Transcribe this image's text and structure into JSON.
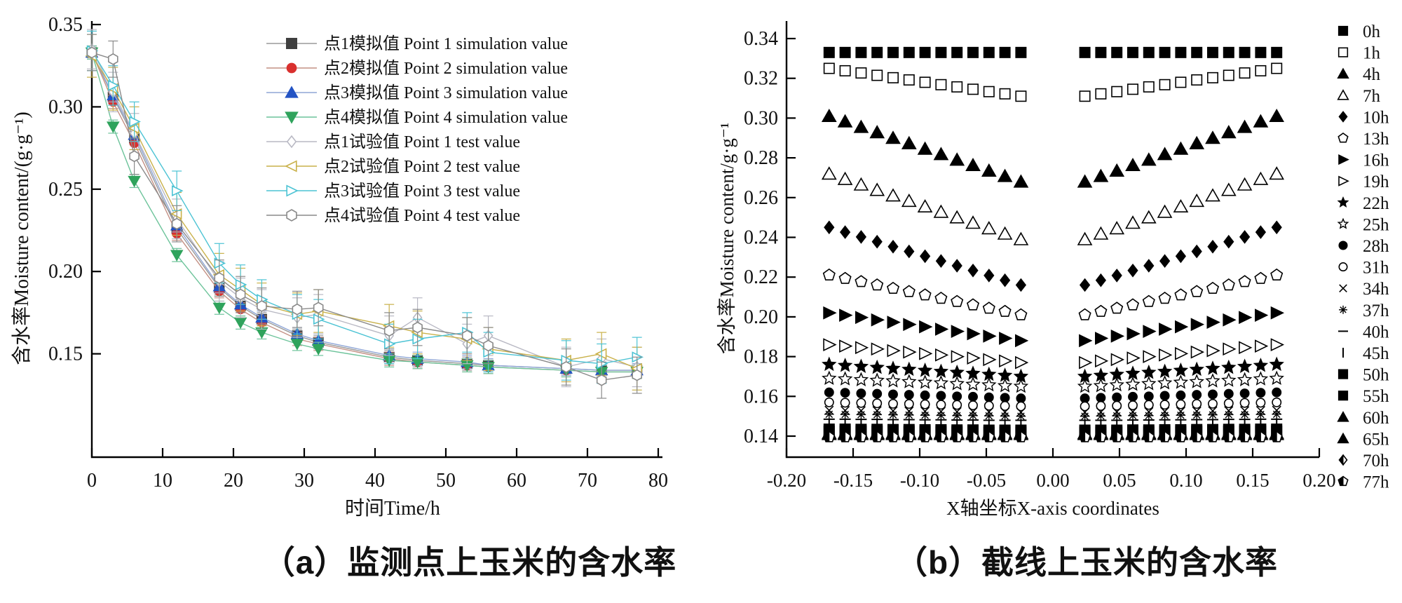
{
  "captions": {
    "a": "（a）监测点上玉米的含水率",
    "b": "（b）截线上玉米的含水率"
  },
  "chart_data": [
    {
      "id": "a",
      "type": "line",
      "xlabel": "时间Time/h",
      "ylabel": "含水率Moisture content/(g·g⁻¹)",
      "xlim": [
        0,
        80
      ],
      "ylim": [
        0.12,
        0.35
      ],
      "xticks": [
        0,
        10,
        20,
        30,
        40,
        50,
        60,
        70,
        80
      ],
      "yticks": [
        0.15,
        0.2,
        0.25,
        0.3,
        0.35
      ],
      "grid": false,
      "legend_position": "top-right-inside",
      "x": [
        0,
        3,
        6,
        12,
        18,
        21,
        24,
        29,
        32,
        42,
        46,
        53,
        56,
        67,
        72,
        77
      ],
      "series": [
        {
          "name": "点1模拟值 Point 1 simulation value",
          "marker": "square",
          "open": false,
          "color": "#3f3f3f",
          "line": "#9a9a9a",
          "err": 0.004,
          "values": [
            0.333,
            0.306,
            0.281,
            0.226,
            0.19,
            0.179,
            0.171,
            0.161,
            0.157,
            0.148,
            0.146,
            0.144,
            0.143,
            0.141,
            0.14,
            0.14
          ]
        },
        {
          "name": "点2模拟值 Point 2 simulation value",
          "marker": "circle",
          "open": false,
          "color": "#d9302e",
          "line": "#c49084",
          "err": 0.004,
          "values": [
            0.333,
            0.303,
            0.278,
            0.223,
            0.188,
            0.177,
            0.169,
            0.159,
            0.156,
            0.147,
            0.145,
            0.143,
            0.142,
            0.14,
            0.139,
            0.139
          ]
        },
        {
          "name": "点3模拟值 Point 3 simulation value",
          "marker": "triangle-up",
          "open": false,
          "color": "#2353c4",
          "line": "#8fa6d6",
          "err": 0.004,
          "values": [
            0.333,
            0.307,
            0.283,
            0.228,
            0.191,
            0.18,
            0.172,
            0.162,
            0.158,
            0.149,
            0.147,
            0.145,
            0.143,
            0.141,
            0.14,
            0.14
          ]
        },
        {
          "name": "点4模拟值 Point 4 simulation value",
          "marker": "triangle-down",
          "open": false,
          "color": "#2fa35c",
          "line": "#6cc39a",
          "err": 0.004,
          "values": [
            0.333,
            0.288,
            0.255,
            0.21,
            0.178,
            0.169,
            0.163,
            0.156,
            0.153,
            0.146,
            0.145,
            0.143,
            0.142,
            0.14,
            0.139,
            0.139
          ]
        },
        {
          "name": "点1试验值 Point 1 test value",
          "marker": "diamond",
          "open": true,
          "color": "#b9b9c4",
          "line": "#b9b9c4",
          "err": 0.012,
          "values": [
            0.335,
            0.309,
            0.284,
            0.232,
            0.194,
            0.184,
            0.177,
            0.172,
            0.174,
            0.161,
            0.172,
            0.156,
            0.161,
            0.142,
            0.147,
            0.142
          ]
        },
        {
          "name": "点2试验值 Point 2 test value",
          "marker": "triangle-left",
          "open": true,
          "color": "#c9b14a",
          "line": "#c9b14a",
          "err": 0.013,
          "values": [
            0.331,
            0.311,
            0.287,
            0.235,
            0.198,
            0.189,
            0.18,
            0.174,
            0.176,
            0.167,
            0.163,
            0.159,
            0.153,
            0.146,
            0.15,
            0.141
          ]
        },
        {
          "name": "点3试验值 Point 3 test value",
          "marker": "triangle-right",
          "open": true,
          "color": "#4cc3d4",
          "line": "#4cc3d4",
          "err": 0.012,
          "values": [
            0.334,
            0.313,
            0.291,
            0.249,
            0.205,
            0.192,
            0.183,
            0.174,
            0.171,
            0.156,
            0.159,
            0.163,
            0.151,
            0.146,
            0.144,
            0.148
          ]
        },
        {
          "name": "点4试验值 Point 4 test value",
          "marker": "hexagon",
          "open": true,
          "color": "#8a8a8a",
          "line": "#8a8a8a",
          "err": 0.011,
          "values": [
            0.333,
            0.329,
            0.27,
            0.229,
            0.196,
            0.186,
            0.179,
            0.177,
            0.178,
            0.164,
            0.166,
            0.161,
            0.155,
            0.142,
            0.134,
            0.137
          ]
        }
      ]
    },
    {
      "id": "b",
      "type": "scatter",
      "xlabel": "X轴坐标X-axis coordinates",
      "ylabel": "含水率Moisture content/g·g⁻¹",
      "xlim": [
        -0.2,
        0.2
      ],
      "ylim": [
        0.13,
        0.34
      ],
      "xtick_values": [
        -0.2,
        -0.15,
        -0.1,
        -0.05,
        0.0,
        0.05,
        0.1,
        0.15,
        0.2
      ],
      "xtick_labels": [
        "-0.20",
        "-0.15",
        "-0.10",
        "-0.05",
        "0.00",
        "0.05",
        "0.10",
        "0.15",
        "0.20"
      ],
      "yticks": [
        0.14,
        0.16,
        0.18,
        0.2,
        0.22,
        0.24,
        0.26,
        0.28,
        0.3,
        0.32,
        0.34
      ],
      "grid": false,
      "legend_position": "right-outside",
      "mirror_right_side": true,
      "x_left": [
        -0.168,
        -0.156,
        -0.144,
        -0.132,
        -0.12,
        -0.108,
        -0.096,
        -0.084,
        -0.072,
        -0.06,
        -0.048,
        -0.036,
        -0.024
      ],
      "series": [
        {
          "label": "0h",
          "marker": "square",
          "filled": true,
          "values_left": [
            0.333,
            0.333,
            0.333,
            0.333,
            0.333,
            0.333,
            0.333,
            0.333,
            0.333,
            0.333,
            0.333,
            0.333,
            0.333
          ]
        },
        {
          "label": "1h",
          "marker": "square",
          "filled": false,
          "values_left": [
            0.325,
            0.3238,
            0.3227,
            0.3215,
            0.3203,
            0.3192,
            0.318,
            0.3168,
            0.3157,
            0.3145,
            0.3133,
            0.3122,
            0.311
          ]
        },
        {
          "label": "4h",
          "marker": "triangle-up",
          "filled": true,
          "values_left": [
            0.301,
            0.2983,
            0.2955,
            0.2928,
            0.29,
            0.2873,
            0.2845,
            0.2818,
            0.279,
            0.2763,
            0.2735,
            0.2708,
            0.268
          ]
        },
        {
          "label": "7h",
          "marker": "triangle-up",
          "filled": false,
          "values_left": [
            0.272,
            0.2693,
            0.2665,
            0.2638,
            0.261,
            0.2583,
            0.2555,
            0.2528,
            0.25,
            0.2473,
            0.2445,
            0.2418,
            0.239
          ]
        },
        {
          "label": "10h",
          "marker": "diamond",
          "filled": true,
          "values_left": [
            0.245,
            0.2426,
            0.2402,
            0.2378,
            0.2353,
            0.2329,
            0.2305,
            0.2281,
            0.2257,
            0.2233,
            0.2208,
            0.2184,
            0.216
          ]
        },
        {
          "label": "13h",
          "marker": "pentagon",
          "filled": false,
          "values_left": [
            0.221,
            0.2193,
            0.2177,
            0.216,
            0.2143,
            0.2127,
            0.211,
            0.2093,
            0.2077,
            0.206,
            0.2043,
            0.2027,
            0.201
          ]
        },
        {
          "label": "16h",
          "marker": "triangle-right",
          "filled": true,
          "values_left": [
            0.202,
            0.2008,
            0.1997,
            0.1985,
            0.1973,
            0.1962,
            0.195,
            0.1938,
            0.1927,
            0.1915,
            0.1903,
            0.1892,
            0.188
          ]
        },
        {
          "label": "19h",
          "marker": "triangle-right",
          "filled": false,
          "values_left": [
            0.186,
            0.1853,
            0.1845,
            0.1838,
            0.183,
            0.1823,
            0.1815,
            0.1808,
            0.18,
            0.1793,
            0.1785,
            0.1778,
            0.177
          ]
        },
        {
          "label": "22h",
          "marker": "star",
          "filled": true,
          "values_left": [
            0.176,
            0.1755,
            0.175,
            0.1745,
            0.174,
            0.1735,
            0.173,
            0.1725,
            0.172,
            0.1715,
            0.171,
            0.1705,
            0.17
          ]
        },
        {
          "label": "25h",
          "marker": "star",
          "filled": false,
          "values_left": [
            0.169,
            0.1687,
            0.1683,
            0.168,
            0.1677,
            0.1673,
            0.167,
            0.1667,
            0.1663,
            0.166,
            0.1657,
            0.1653,
            0.165
          ]
        },
        {
          "label": "28h",
          "marker": "circle",
          "filled": true,
          "values_left": [
            0.162,
            0.1618,
            0.1615,
            0.1613,
            0.161,
            0.1608,
            0.1605,
            0.1603,
            0.16,
            0.1598,
            0.1595,
            0.1593,
            0.159
          ]
        },
        {
          "label": "31h",
          "marker": "circle",
          "filled": false,
          "values_left": [
            0.157,
            0.1568,
            0.1567,
            0.1565,
            0.1563,
            0.1562,
            0.156,
            0.1558,
            0.1557,
            0.1555,
            0.1553,
            0.1552,
            0.155
          ]
        },
        {
          "label": "34h",
          "marker": "cross",
          "filled": false,
          "values_left": [
            0.153,
            0.1529,
            0.1528,
            0.1528,
            0.1527,
            0.1526,
            0.1525,
            0.1524,
            0.1523,
            0.1523,
            0.1522,
            0.1521,
            0.152
          ]
        },
        {
          "label": "37h",
          "marker": "asterisk",
          "filled": false,
          "values_left": [
            0.151,
            0.1509,
            0.1508,
            0.1508,
            0.1507,
            0.1506,
            0.1505,
            0.1504,
            0.1503,
            0.1503,
            0.1502,
            0.1501,
            0.15
          ]
        },
        {
          "label": "40h",
          "marker": "hline",
          "filled": false,
          "values_left": [
            0.1485,
            0.1485,
            0.1484,
            0.1484,
            0.1483,
            0.1483,
            0.1482,
            0.1482,
            0.1481,
            0.1481,
            0.148,
            0.148,
            0.148
          ]
        },
        {
          "label": "45h",
          "marker": "vline",
          "filled": false,
          "values_left": [
            0.146,
            0.146,
            0.1459,
            0.1459,
            0.1458,
            0.1458,
            0.1457,
            0.1457,
            0.1456,
            0.1456,
            0.1455,
            0.1455,
            0.1455
          ]
        },
        {
          "label": "50h",
          "marker": "square",
          "filled": true,
          "values_left": [
            0.1435,
            0.1435,
            0.1434,
            0.1434,
            0.1433,
            0.1433,
            0.1432,
            0.1432,
            0.1431,
            0.1431,
            0.143,
            0.143,
            0.143
          ]
        },
        {
          "label": "55h",
          "marker": "square",
          "filled": true,
          "values_left": [
            0.1425,
            0.1425,
            0.1424,
            0.1424,
            0.1423,
            0.1423,
            0.1422,
            0.1422,
            0.1421,
            0.1421,
            0.142,
            0.142,
            0.142
          ]
        },
        {
          "label": "60h",
          "marker": "triangle-up",
          "filled": true,
          "values_left": [
            0.1415,
            0.1415,
            0.1415,
            0.1415,
            0.1415,
            0.1415,
            0.1415,
            0.1415,
            0.1415,
            0.1415,
            0.1415,
            0.1415,
            0.1415
          ]
        },
        {
          "label": "65h",
          "marker": "triangle-up",
          "filled": true,
          "values_left": [
            0.141,
            0.141,
            0.141,
            0.141,
            0.141,
            0.141,
            0.141,
            0.141,
            0.141,
            0.141,
            0.141,
            0.141,
            0.141
          ]
        },
        {
          "label": "70h",
          "marker": "diamond-half",
          "filled": true,
          "values_left": [
            0.1402,
            0.1402,
            0.1402,
            0.1402,
            0.1402,
            0.1402,
            0.1402,
            0.1402,
            0.1402,
            0.1402,
            0.1402,
            0.1402,
            0.1402
          ]
        },
        {
          "label": "77h",
          "marker": "pentagon-half",
          "filled": true,
          "values_left": [
            0.1395,
            0.1395,
            0.1395,
            0.1395,
            0.1395,
            0.1395,
            0.1395,
            0.1395,
            0.1395,
            0.1395,
            0.1395,
            0.1395,
            0.1395
          ]
        }
      ]
    }
  ],
  "colors": {
    "axis": "#000000",
    "scatter": "#000000",
    "background": "#ffffff"
  }
}
